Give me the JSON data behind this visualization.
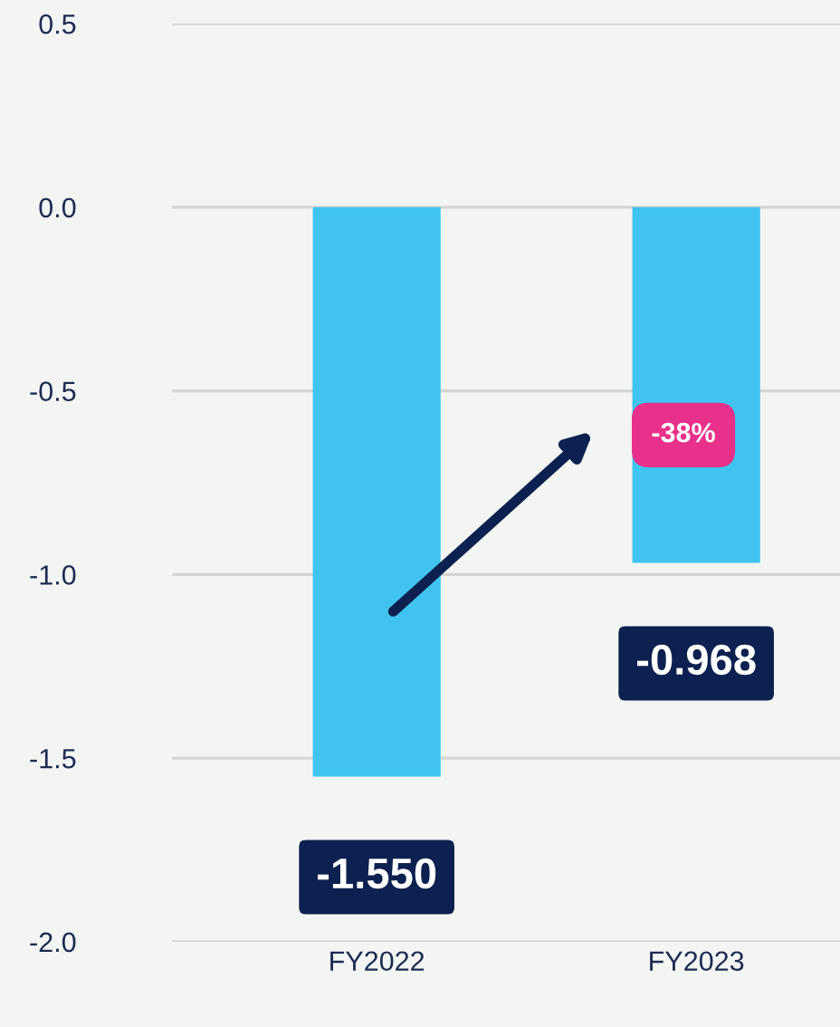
{
  "chart_data": {
    "type": "bar",
    "categories": [
      "FY2022",
      "FY2023"
    ],
    "values": [
      -1.55,
      -0.968
    ],
    "value_labels": [
      "-1.550",
      "-0.968"
    ],
    "color": "#40c4ef",
    "ylim": [
      -2.0,
      0.5
    ],
    "yticks": [
      {
        "value": 0.5,
        "label": "0.5"
      },
      {
        "value": 0.0,
        "label": "0.0"
      },
      {
        "value": -0.5,
        "label": "-0.5"
      },
      {
        "value": -1.0,
        "label": "-1.0"
      },
      {
        "value": -1.5,
        "label": "-1.5"
      },
      {
        "value": -2.0,
        "label": "-2.0"
      }
    ],
    "grid": "y",
    "annotations": [
      "-38%"
    ]
  }
}
